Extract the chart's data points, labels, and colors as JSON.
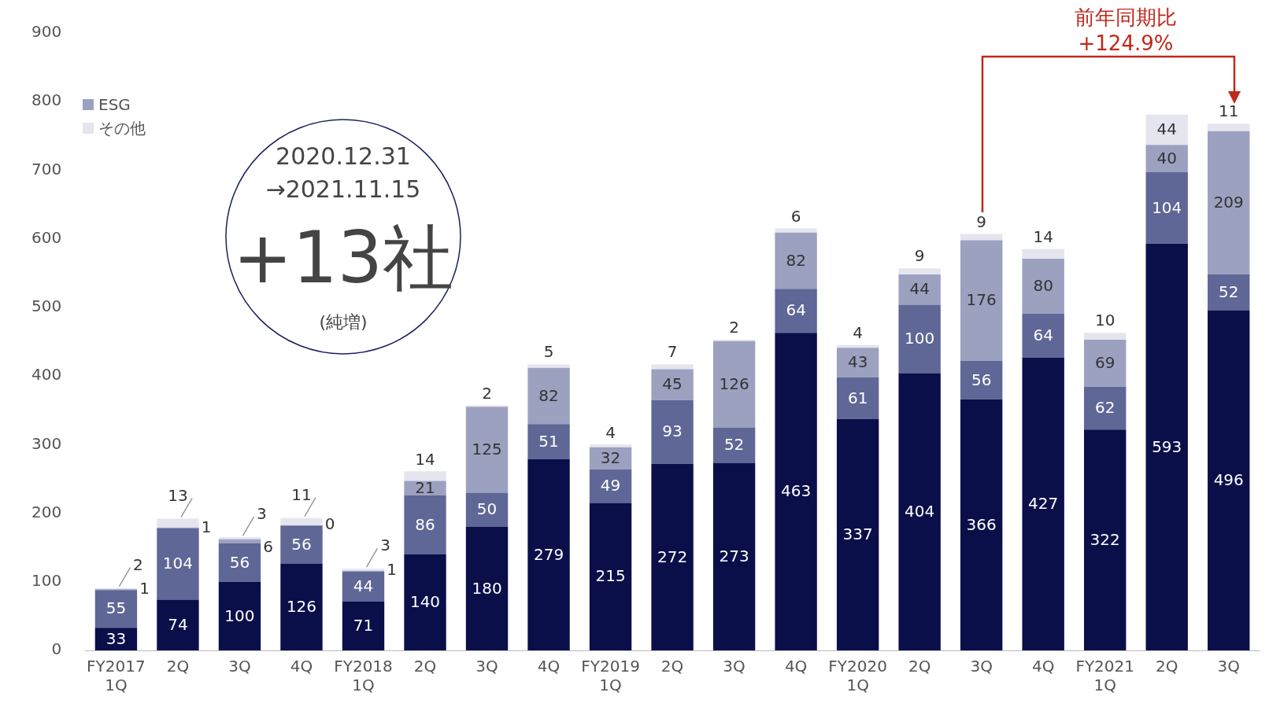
{
  "chart_data": {
    "type": "bar",
    "stacked": true,
    "data_labels": true,
    "legend": "top left",
    "grid": false,
    "categories": [
      "FY2017\n1Q",
      "2Q",
      "3Q",
      "4Q",
      "FY2018\n1Q",
      "2Q",
      "3Q",
      "4Q",
      "FY2019\n1Q",
      "2Q",
      "3Q",
      "4Q",
      "FY2020\n1Q",
      "2Q",
      "3Q",
      "4Q",
      "FY2021\n1Q",
      "2Q",
      "3Q"
    ],
    "ylim": [
      0,
      900
    ],
    "yticks": [
      0,
      100,
      200,
      300,
      400,
      500,
      600,
      700,
      800,
      900
    ],
    "series": [
      {
        "color": "#0a0f4a",
        "values": [
          33,
          74,
          100,
          126,
          71,
          140,
          180,
          279,
          215,
          272,
          273,
          463,
          337,
          404,
          366,
          427,
          322,
          593,
          496
        ]
      },
      {
        "color": "#5f6796",
        "values": [
          55,
          104,
          56,
          56,
          44,
          86,
          50,
          51,
          49,
          93,
          52,
          64,
          61,
          100,
          56,
          64,
          62,
          104,
          52
        ]
      },
      {
        "name": "ESG",
        "color": "#9ca1c0",
        "values": [
          1,
          1,
          6,
          0,
          1,
          21,
          125,
          82,
          32,
          45,
          126,
          82,
          43,
          44,
          176,
          80,
          69,
          40,
          209
        ]
      },
      {
        "name": "その他",
        "color": "#e4e5ef",
        "values": [
          2,
          13,
          3,
          11,
          3,
          14,
          2,
          5,
          4,
          7,
          2,
          6,
          4,
          9,
          9,
          14,
          10,
          44,
          11
        ]
      }
    ],
    "annotations": [
      "2020.12.31",
      "→2021.11.15",
      "+13社",
      "(純増)",
      "前年同期比\n+124.9%"
    ]
  }
}
